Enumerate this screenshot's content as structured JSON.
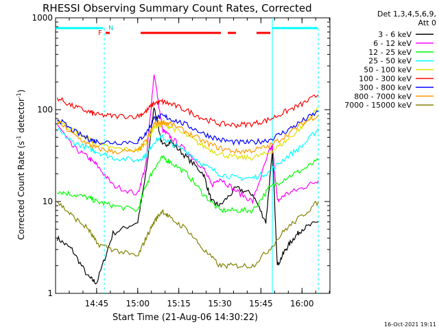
{
  "chart_data": {
    "type": "line",
    "title": "RHESSI Observing Summary Count Rates, Corrected",
    "xlabel": "Start Time (21-Aug-06 14:30:22)",
    "ylabel_main": "Corrected Count Rate (s",
    "ylabel_sup1": "-1",
    "ylabel_mid": " detector",
    "ylabel_sup2": "-1",
    "ylabel_end": ")",
    "y_scale": "log",
    "ylim": [
      1,
      1000
    ],
    "xlim_minutes": [
      14.5,
      16.17
    ],
    "x_ticks": [
      {
        "label": "14:45",
        "t": 14.75
      },
      {
        "label": "15:00",
        "t": 15.0
      },
      {
        "label": "15:15",
        "t": 15.25
      },
      {
        "label": "15:30",
        "t": 15.5
      },
      {
        "label": "15:45",
        "t": 15.75
      },
      {
        "label": "16:00",
        "t": 16.0
      }
    ],
    "y_ticks": [
      {
        "label": "1",
        "v": 1
      },
      {
        "label": "10",
        "v": 10
      },
      {
        "label": "100",
        "v": 100
      },
      {
        "label": "1000",
        "v": 1000
      }
    ],
    "legend_header": [
      "Det 1,3,4,5,6,9,",
      "Att 0"
    ],
    "legend_position": "right",
    "series": [
      {
        "name": "3 - 6 keV",
        "color": "#000000",
        "t": [
          14.51,
          14.6,
          14.7,
          14.75,
          14.85,
          15.0,
          15.05,
          15.1,
          15.15,
          15.2,
          15.3,
          15.4,
          15.45,
          15.5,
          15.6,
          15.7,
          15.78,
          15.82,
          15.85,
          15.9,
          15.95,
          16.0,
          16.1
        ],
        "v": [
          4,
          3,
          1.5,
          1.3,
          4.5,
          6,
          20,
          110,
          40,
          45,
          30,
          20,
          10,
          9,
          14,
          12,
          6,
          35,
          2,
          3,
          4,
          5,
          6
        ]
      },
      {
        "name": "6 - 12 keV",
        "color": "#ff00ff",
        "t": [
          14.51,
          14.6,
          14.7,
          14.75,
          14.85,
          15.0,
          15.05,
          15.1,
          15.15,
          15.2,
          15.3,
          15.4,
          15.45,
          15.5,
          15.6,
          15.7,
          15.8,
          15.82,
          15.85,
          15.9,
          16.0,
          16.1
        ],
        "v": [
          70,
          40,
          30,
          25,
          15,
          12,
          25,
          250,
          60,
          50,
          35,
          23,
          15,
          18,
          13,
          10,
          35,
          40,
          10,
          12,
          14,
          17
        ]
      },
      {
        "name": "12 - 25 keV",
        "color": "#00ff00",
        "t": [
          14.51,
          14.6,
          14.7,
          14.75,
          14.85,
          15.0,
          15.05,
          15.1,
          15.15,
          15.2,
          15.3,
          15.4,
          15.5,
          15.6,
          15.7,
          15.8,
          15.9,
          16.0,
          16.1
        ],
        "v": [
          13,
          12,
          11,
          10,
          9,
          8,
          15,
          23,
          30,
          27,
          20,
          12,
          8,
          8,
          8,
          14,
          18,
          22,
          28
        ]
      },
      {
        "name": "25 - 50 keV",
        "color": "#00ffff",
        "t": [
          14.51,
          14.6,
          14.7,
          14.75,
          14.85,
          15.0,
          15.05,
          15.1,
          15.15,
          15.2,
          15.3,
          15.4,
          15.5,
          15.6,
          15.7,
          15.8,
          15.9,
          16.0,
          16.1
        ],
        "v": [
          60,
          45,
          38,
          35,
          30,
          28,
          32,
          45,
          50,
          43,
          35,
          25,
          20,
          18,
          18,
          21,
          30,
          40,
          62
        ]
      },
      {
        "name": "50 - 100 keV",
        "color": "#e0e000",
        "t": [
          14.51,
          14.6,
          14.7,
          14.75,
          14.85,
          15.0,
          15.05,
          15.1,
          15.15,
          15.2,
          15.3,
          15.4,
          15.5,
          15.6,
          15.7,
          15.8,
          15.9,
          16.0,
          16.1
        ],
        "v": [
          78,
          60,
          48,
          42,
          38,
          36,
          44,
          65,
          70,
          65,
          52,
          40,
          33,
          30,
          30,
          34,
          45,
          65,
          105
        ]
      },
      {
        "name": "100 - 300 keV",
        "color": "#ff0000",
        "t": [
          14.51,
          14.6,
          14.7,
          14.75,
          14.85,
          15.0,
          15.05,
          15.1,
          15.15,
          15.2,
          15.3,
          15.4,
          15.5,
          15.6,
          15.7,
          15.8,
          15.9,
          16.0,
          16.1
        ],
        "v": [
          135,
          110,
          95,
          88,
          85,
          85,
          95,
          118,
          122,
          115,
          98,
          80,
          70,
          68,
          70,
          78,
          95,
          115,
          145
        ]
      },
      {
        "name": "300 - 800 keV",
        "color": "#0000ff",
        "t": [
          14.51,
          14.6,
          14.7,
          14.75,
          14.85,
          15.0,
          15.05,
          15.1,
          15.15,
          15.2,
          15.3,
          15.4,
          15.5,
          15.6,
          15.7,
          15.8,
          15.9,
          16.0,
          16.1
        ],
        "v": [
          80,
          60,
          48,
          45,
          44,
          45,
          55,
          80,
          85,
          80,
          68,
          55,
          47,
          44,
          44,
          47,
          58,
          75,
          95
        ]
      },
      {
        "name": "800 - 7000 keV",
        "color": "#ff9900",
        "t": [
          14.51,
          14.6,
          14.7,
          14.75,
          14.85,
          15.0,
          15.05,
          15.1,
          15.15,
          15.2,
          15.3,
          15.4,
          15.5,
          15.6,
          15.7,
          15.8,
          15.9,
          16.0,
          16.1
        ],
        "v": [
          75,
          55,
          42,
          38,
          35,
          35,
          45,
          70,
          74,
          70,
          57,
          45,
          38,
          35,
          36,
          40,
          52,
          70,
          88
        ]
      },
      {
        "name": "7000 - 15000 keV",
        "color": "#808000",
        "t": [
          14.51,
          14.6,
          14.7,
          14.75,
          14.85,
          15.0,
          15.05,
          15.1,
          15.15,
          15.2,
          15.3,
          15.4,
          15.5,
          15.6,
          15.7,
          15.8,
          15.9,
          16.0,
          16.1
        ],
        "v": [
          10,
          7,
          5,
          3.5,
          3,
          2.5,
          4,
          6,
          8,
          6.5,
          5,
          3,
          2,
          2,
          2,
          3,
          5,
          7,
          10
        ]
      }
    ],
    "annotations": {
      "flag_F": "F",
      "flag_N": "N",
      "timestamp": "16-Oct-2021 19:11"
    }
  }
}
